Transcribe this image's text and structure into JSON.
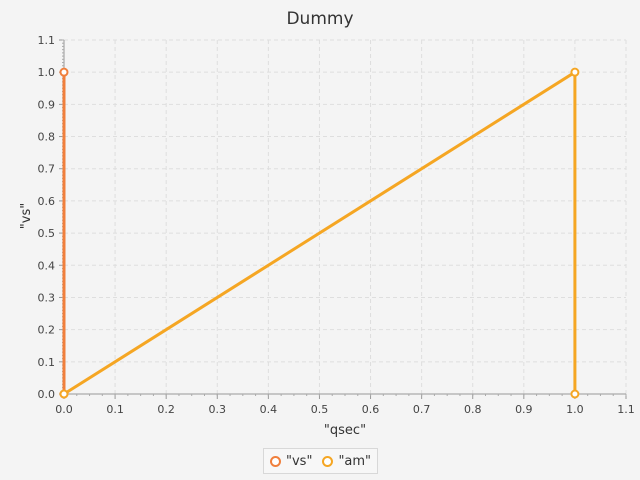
{
  "chart_data": {
    "type": "line",
    "title": "Dummy",
    "xlabel": "\"qsec\"",
    "ylabel": "\"vs\"",
    "xlim": [
      0,
      1.1
    ],
    "ylim": [
      0,
      1.1
    ],
    "xticks": [
      "0.0",
      "0.1",
      "0.2",
      "0.3",
      "0.4",
      "0.5",
      "0.6",
      "0.7",
      "0.8",
      "0.9",
      "1.0",
      "1.1"
    ],
    "yticks": [
      "0.0",
      "0.1",
      "0.2",
      "0.3",
      "0.4",
      "0.5",
      "0.6",
      "0.7",
      "0.8",
      "0.9",
      "1.0",
      "1.1"
    ],
    "grid": true,
    "legend_position": "bottom-center",
    "series": [
      {
        "name": "\"vs\"",
        "color": "#f07f3c",
        "points": [
          [
            0,
            0
          ],
          [
            0,
            1
          ]
        ]
      },
      {
        "name": "\"am\"",
        "color": "#f5a623",
        "points": [
          [
            0,
            0
          ],
          [
            1,
            1
          ],
          [
            1,
            0
          ]
        ]
      }
    ]
  }
}
